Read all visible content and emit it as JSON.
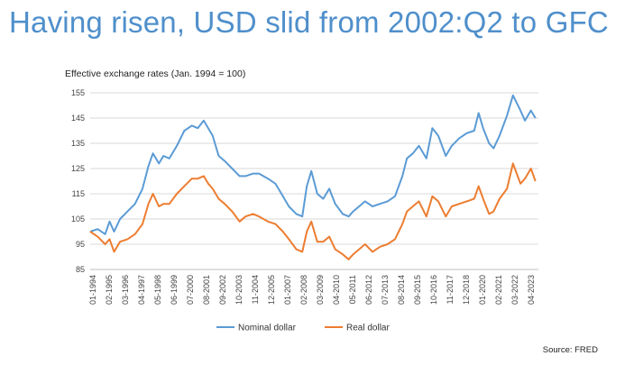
{
  "slide": {
    "title": "Having risen, USD slid from 2002:Q2 to GFC",
    "source": "Source: FRED"
  },
  "chart_data": {
    "type": "line",
    "subtitle": "Effective exchange rates (Jan. 1994 = 100)",
    "ylim": [
      85,
      155
    ],
    "yticks": [
      85,
      95,
      105,
      115,
      125,
      135,
      145,
      155
    ],
    "xlim": [
      1994.0,
      2024.0
    ],
    "xtick_labels": [
      "01-1994",
      "02-1995",
      "03-1996",
      "04-1997",
      "05-1998",
      "06-1999",
      "07-2000",
      "08-2001",
      "09-2002",
      "10-2003",
      "11-2004",
      "12-2005",
      "01-2007",
      "02-2008",
      "03-2009",
      "04-2010",
      "05-2011",
      "06-2012",
      "07-2013",
      "08-2014",
      "09-2015",
      "10-2016",
      "11-2017",
      "12-2018",
      "01-2020",
      "02-2021",
      "03-2022",
      "04-2023"
    ],
    "grid": "horizontal",
    "legend_position": "bottom",
    "series": [
      {
        "name": "Nominal dollar",
        "color": "#5b9bd5",
        "x": [
          1994.0,
          1994.5,
          1995.0,
          1995.3,
          1995.6,
          1996.0,
          1996.5,
          1997.0,
          1997.5,
          1997.9,
          1998.2,
          1998.6,
          1998.9,
          1999.3,
          1999.8,
          2000.3,
          2000.8,
          2001.2,
          2001.6,
          2001.9,
          2002.2,
          2002.6,
          2003.0,
          2003.5,
          2004.0,
          2004.4,
          2004.9,
          2005.3,
          2005.9,
          2006.4,
          2006.9,
          2007.3,
          2007.8,
          2008.2,
          2008.5,
          2008.8,
          2009.2,
          2009.6,
          2010.0,
          2010.4,
          2010.9,
          2011.3,
          2011.6,
          2012.0,
          2012.4,
          2012.9,
          2013.4,
          2013.9,
          2014.4,
          2014.9,
          2015.2,
          2015.6,
          2016.0,
          2016.5,
          2016.9,
          2017.3,
          2017.8,
          2018.2,
          2018.7,
          2019.2,
          2019.7,
          2020.0,
          2020.3,
          2020.7,
          2021.0,
          2021.4,
          2021.9,
          2022.3,
          2022.8,
          2023.1,
          2023.5,
          2023.8
        ],
        "values": [
          100,
          101,
          99,
          104,
          100,
          105,
          108,
          111,
          117,
          126,
          131,
          127,
          130,
          129,
          134,
          140,
          142,
          141,
          144,
          141,
          138,
          130,
          128,
          125,
          122,
          122,
          123,
          123,
          121,
          119,
          114,
          110,
          107,
          106,
          118,
          124,
          115,
          113,
          117,
          111,
          107,
          106,
          108,
          110,
          112,
          110,
          111,
          112,
          114,
          122,
          129,
          131,
          134,
          129,
          141,
          138,
          130,
          134,
          137,
          139,
          140,
          147,
          141,
          135,
          133,
          138,
          146,
          154,
          148,
          144,
          148,
          145
        ]
      },
      {
        "name": "Real dollar",
        "color": "#ed7d31",
        "x": [
          1994.0,
          1994.5,
          1995.0,
          1995.3,
          1995.6,
          1996.0,
          1996.5,
          1997.0,
          1997.5,
          1997.9,
          1998.2,
          1998.6,
          1998.9,
          1999.3,
          1999.8,
          2000.3,
          2000.8,
          2001.2,
          2001.6,
          2001.9,
          2002.2,
          2002.6,
          2003.0,
          2003.5,
          2004.0,
          2004.4,
          2004.9,
          2005.3,
          2005.9,
          2006.4,
          2006.9,
          2007.3,
          2007.8,
          2008.2,
          2008.5,
          2008.8,
          2009.2,
          2009.6,
          2010.0,
          2010.4,
          2010.9,
          2011.3,
          2011.6,
          2012.0,
          2012.4,
          2012.9,
          2013.4,
          2013.9,
          2014.4,
          2014.9,
          2015.2,
          2015.6,
          2016.0,
          2016.5,
          2016.9,
          2017.3,
          2017.8,
          2018.2,
          2018.7,
          2019.2,
          2019.7,
          2020.0,
          2020.3,
          2020.7,
          2021.0,
          2021.4,
          2021.9,
          2022.3,
          2022.8,
          2023.1,
          2023.5,
          2023.8
        ],
        "values": [
          100,
          98,
          95,
          97,
          92,
          96,
          97,
          99,
          103,
          111,
          115,
          110,
          111,
          111,
          115,
          118,
          121,
          121,
          122,
          119,
          117,
          113,
          111,
          108,
          104,
          106,
          107,
          106,
          104,
          103,
          100,
          97,
          93,
          92,
          100,
          104,
          96,
          96,
          98,
          93,
          91,
          89,
          91,
          93,
          95,
          92,
          94,
          95,
          97,
          103,
          108,
          110,
          112,
          106,
          114,
          112,
          106,
          110,
          111,
          112,
          113,
          118,
          113,
          107,
          108,
          113,
          117,
          127,
          119,
          121,
          125,
          120
        ]
      }
    ]
  }
}
